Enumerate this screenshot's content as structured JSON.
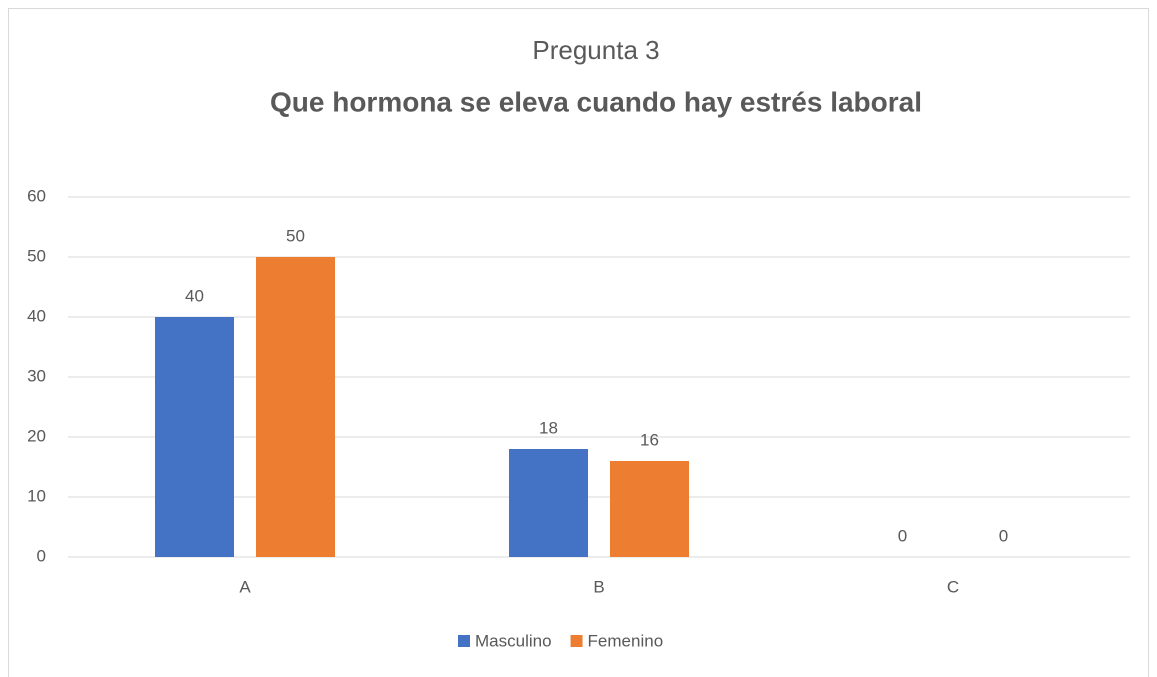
{
  "chart_data": {
    "type": "bar",
    "title": "Pregunta 3",
    "subtitle": "Que hormona se eleva cuando hay estrés laboral",
    "categories": [
      "A",
      "B",
      "C"
    ],
    "series": [
      {
        "name": "Masculino",
        "color": "#4472c4",
        "values": [
          40,
          18,
          0
        ]
      },
      {
        "name": "Femenino",
        "color": "#ed7d31",
        "values": [
          50,
          16,
          0
        ]
      }
    ],
    "ylim": [
      0,
      60
    ],
    "yticks": [
      0,
      10,
      20,
      30,
      40,
      50,
      60
    ],
    "grid": true,
    "legend": "bottom"
  }
}
